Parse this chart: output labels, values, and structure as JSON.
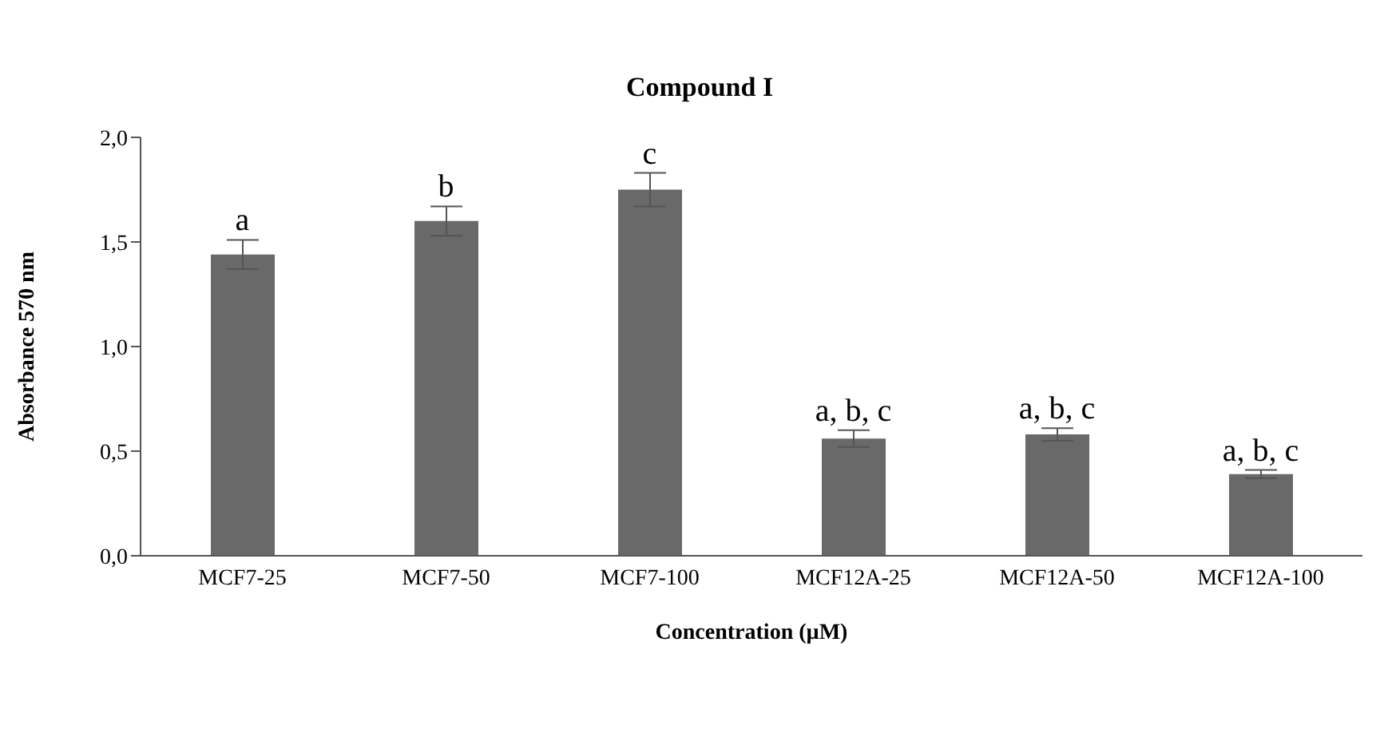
{
  "chart_data": {
    "type": "bar",
    "title": "Compound I",
    "xlabel": "Concentration (µM)",
    "ylabel": "Absorbance 570 nm",
    "categories": [
      "MCF7-25",
      "MCF7-50",
      "MCF7-100",
      "MCF12A-25",
      "MCF12A-50",
      "MCF12A-100"
    ],
    "values": [
      1.44,
      1.6,
      1.75,
      0.56,
      0.58,
      0.39
    ],
    "errors": [
      0.07,
      0.07,
      0.08,
      0.04,
      0.03,
      0.02
    ],
    "color": "#696969",
    "ylim": [
      0,
      2
    ],
    "yticks": [
      {
        "value": 0,
        "label": "0,0"
      },
      {
        "value": 0.5,
        "label": "0,5"
      },
      {
        "value": 1,
        "label": "1,0"
      },
      {
        "value": 1.5,
        "label": "1,5"
      },
      {
        "value": 2,
        "label": "2,0"
      }
    ],
    "grid": false,
    "legend": false,
    "annotations": [
      {
        "text": "a",
        "x": "MCF7-25",
        "y": 1.51
      },
      {
        "text": "b",
        "x": "MCF7-50",
        "y": 1.67
      },
      {
        "text": "c",
        "x": "MCF7-100",
        "y": 1.83
      },
      {
        "text": "a, b, c",
        "x": "MCF12A-25",
        "y": 0.6
      },
      {
        "text": "a, b, c",
        "x": "MCF12A-50",
        "y": 0.61
      },
      {
        "text": "a, b, c",
        "x": "MCF12A-100",
        "y": 0.41
      }
    ]
  }
}
